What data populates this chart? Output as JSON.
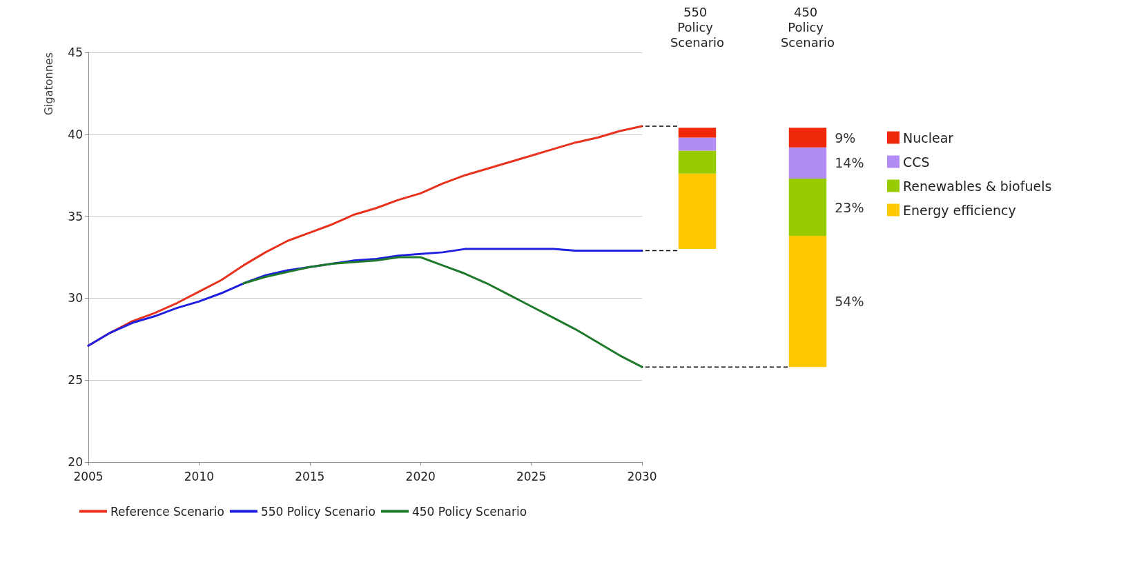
{
  "chart_data": [
    {
      "type": "line",
      "ylabel": "Gigatonnes",
      "x": [
        2005,
        2006,
        2007,
        2008,
        2009,
        2010,
        2011,
        2012,
        2013,
        2014,
        2015,
        2016,
        2017,
        2018,
        2019,
        2020,
        2021,
        2022,
        2023,
        2024,
        2025,
        2026,
        2027,
        2028,
        2029,
        2030
      ],
      "series": [
        {
          "name": "Reference Scenario",
          "color": "#e8321e",
          "values": [
            27.1,
            27.9,
            28.6,
            29.1,
            29.7,
            30.4,
            31.1,
            32.0,
            32.8,
            33.5,
            34.0,
            34.5,
            35.1,
            35.5,
            36.0,
            36.4,
            37.0,
            37.5,
            37.9,
            38.3,
            38.7,
            39.1,
            39.5,
            39.8,
            40.2,
            40.5
          ]
        },
        {
          "name": "550 Policy Scenario",
          "color": "#1f1fe0",
          "values": [
            27.1,
            27.9,
            28.5,
            28.9,
            29.4,
            29.8,
            30.3,
            30.9,
            31.4,
            31.7,
            31.9,
            32.1,
            32.3,
            32.4,
            32.6,
            32.7,
            32.8,
            33.0,
            33.0,
            33.0,
            33.0,
            33.0,
            32.9,
            32.9,
            32.9,
            32.9
          ]
        },
        {
          "name": "450 Policy Scenario",
          "color": "#1e7a2a",
          "values": [
            null,
            null,
            null,
            null,
            null,
            null,
            null,
            30.9,
            31.3,
            31.6,
            31.9,
            32.1,
            32.2,
            32.3,
            32.5,
            32.5,
            32.0,
            31.5,
            30.9,
            30.2,
            29.5,
            28.8,
            28.1,
            27.3,
            26.5,
            25.8
          ]
        }
      ],
      "xlim": [
        2005,
        2030
      ],
      "xticks": [
        2005,
        2010,
        2015,
        2020,
        2025,
        2030
      ],
      "ylim": [
        20,
        45
      ],
      "yticks": [
        20,
        25,
        30,
        35,
        40,
        45
      ],
      "grid": "y",
      "legend": "bottom",
      "marker": "none",
      "line_style": "solid"
    },
    {
      "type": "bar",
      "categories": [
        "550 Policy Scenario",
        "450 Policy Scenario"
      ],
      "series": [
        {
          "name": "Energy efficiency",
          "color": "#ffc800",
          "base": [
            33.0,
            25.8
          ],
          "values": [
            4.6,
            8.0
          ]
        },
        {
          "name": "Renewables & biofuels",
          "color": "#99cc00",
          "base": [
            37.6,
            33.8
          ],
          "values": [
            1.4,
            3.5
          ]
        },
        {
          "name": "CCS",
          "color": "#b18cf5",
          "base": [
            39.0,
            37.3
          ],
          "values": [
            0.8,
            1.9
          ]
        },
        {
          "name": "Nuclear",
          "color": "#f0280a",
          "base": [
            39.8,
            39.2
          ],
          "values": [
            0.6,
            1.2
          ]
        }
      ],
      "ylim": [
        20,
        45
      ],
      "yticks": [
        20,
        25,
        30,
        35,
        40,
        45
      ],
      "tick_labels": "x",
      "grid": false,
      "legend": "right",
      "annotations": [
        "54%",
        "23%",
        "14%",
        "9%"
      ],
      "ref_lines": [
        {
          "axis": "y",
          "value": 40.5,
          "color": "#000000",
          "line_style": "dashed"
        },
        {
          "axis": "y",
          "value": 32.9,
          "color": "#000000",
          "line_style": "dashed"
        },
        {
          "axis": "y",
          "value": 25.8,
          "color": "#000000",
          "line_style": "dashed"
        }
      ]
    }
  ]
}
